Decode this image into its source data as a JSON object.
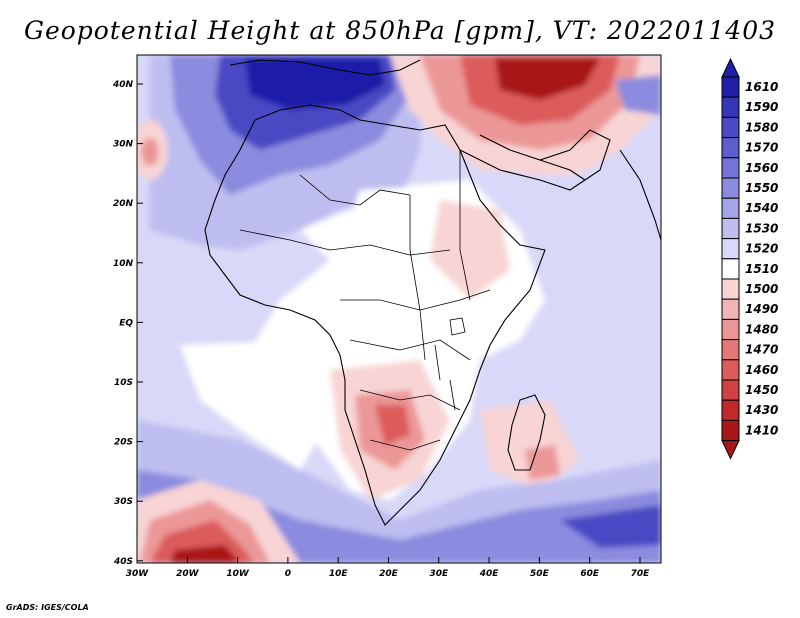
{
  "title": "Geopotential Height at 850hPa [gpm], VT: 2022011403",
  "credit": "GrADS: IGES/COLA",
  "axes": {
    "lat_labels": [
      "40N",
      "30N",
      "20N",
      "10N",
      "EQ",
      "10S",
      "20S",
      "30S",
      "40S"
    ],
    "lon_labels": [
      "30W",
      "20W",
      "10W",
      "0",
      "10E",
      "20E",
      "30E",
      "40E",
      "50E",
      "60E",
      "70E"
    ]
  },
  "colorbar": {
    "levels": [
      "1610",
      "1590",
      "1580",
      "1570",
      "1560",
      "1550",
      "1540",
      "1530",
      "1520",
      "1510",
      "1500",
      "1490",
      "1480",
      "1470",
      "1460",
      "1450",
      "1430",
      "1410"
    ],
    "colors": [
      "#1f1fa8",
      "#3535b8",
      "#4a4ac4",
      "#5d5dcd",
      "#7474d6",
      "#8b8bdf",
      "#a4a4e8",
      "#bdbdf0",
      "#d8d8f8",
      "#ffffff",
      "#f8d4d4",
      "#f2b5b5",
      "#ec9797",
      "#e47878",
      "#dc5b5b",
      "#d04242",
      "#c02a2a",
      "#a81818"
    ]
  },
  "field_colors": {
    "white": "#ffffff",
    "pale_blue": "#d8d8f8",
    "light_blue": "#bdbdf0",
    "mid_blue": "#8b8bdf",
    "deep_blue": "#4a4ac4",
    "navy": "#1f1fa8",
    "pale_red": "#f8d4d4",
    "light_red": "#ec9797",
    "mid_red": "#dc5b5b",
    "deep_red": "#a81818"
  }
}
